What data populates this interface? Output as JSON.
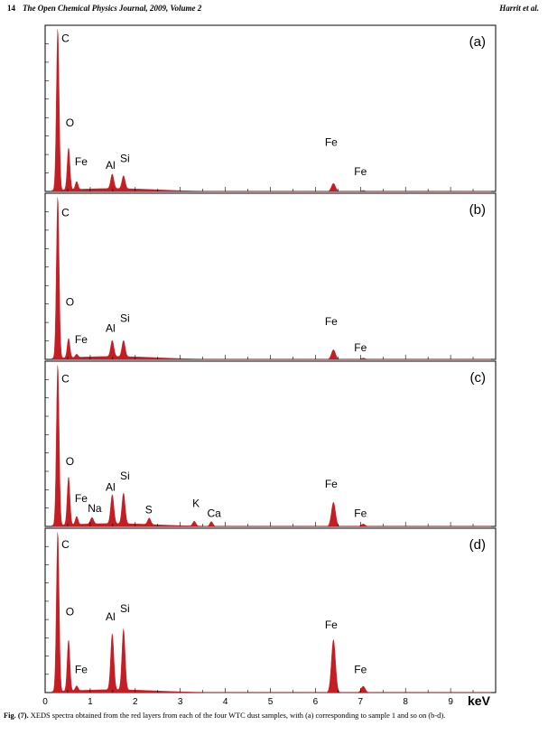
{
  "header": {
    "page_number": "14",
    "journal": "The Open Chemical Physics Journal, 2009, Volume 2",
    "authors": "Harrit et al."
  },
  "caption": {
    "label": "Fig. (7).",
    "text": "XEDS spectra obtained from the red layers from each of the four WTC dust samples, with (a) corresponding to sample 1 and so on (b-d)."
  },
  "colors": {
    "spectrum": "#c41e24",
    "axis": "#000000"
  },
  "chart_data": [
    {
      "type": "area",
      "panel_label": "(a)",
      "xlabel": "keV",
      "xlim": [
        0,
        10
      ],
      "ylim": [
        0,
        100
      ],
      "peaks": [
        {
          "element": "C",
          "x": 0.28,
          "y": 100
        },
        {
          "element": "O",
          "x": 0.52,
          "y": 26
        },
        {
          "element": "Fe",
          "x": 0.7,
          "y": 5
        },
        {
          "element": "Al",
          "x": 1.49,
          "y": 9
        },
        {
          "element": "Si",
          "x": 1.74,
          "y": 8
        },
        {
          "element": "Fe",
          "x": 6.4,
          "y": 5
        },
        {
          "element": "Fe",
          "x": 7.06,
          "y": 0.6
        }
      ],
      "labels": [
        {
          "text": "C",
          "x": 0.45,
          "y": 92
        },
        {
          "text": "O",
          "x": 0.55,
          "y": 40
        },
        {
          "text": "Fe",
          "x": 0.8,
          "y": 16
        },
        {
          "text": "Al",
          "x": 1.45,
          "y": 14
        },
        {
          "text": "Si",
          "x": 1.77,
          "y": 18
        },
        {
          "text": "Fe",
          "x": 6.35,
          "y": 28
        },
        {
          "text": "Fe",
          "x": 7.0,
          "y": 10
        }
      ]
    },
    {
      "type": "area",
      "panel_label": "(b)",
      "xlabel": "keV",
      "xlim": [
        0,
        10
      ],
      "ylim": [
        0,
        100
      ],
      "peaks": [
        {
          "element": "C",
          "x": 0.28,
          "y": 100
        },
        {
          "element": "O",
          "x": 0.52,
          "y": 12
        },
        {
          "element": "Fe",
          "x": 0.7,
          "y": 2
        },
        {
          "element": "Al",
          "x": 1.49,
          "y": 10
        },
        {
          "element": "Si",
          "x": 1.74,
          "y": 10
        },
        {
          "element": "Fe",
          "x": 6.4,
          "y": 6
        },
        {
          "element": "Fe",
          "x": 7.06,
          "y": 0.8
        }
      ],
      "labels": [
        {
          "text": "C",
          "x": 0.45,
          "y": 88
        },
        {
          "text": "O",
          "x": 0.55,
          "y": 33
        },
        {
          "text": "Fe",
          "x": 0.8,
          "y": 10
        },
        {
          "text": "Al",
          "x": 1.45,
          "y": 17
        },
        {
          "text": "Si",
          "x": 1.77,
          "y": 23
        },
        {
          "text": "Fe",
          "x": 6.35,
          "y": 21
        },
        {
          "text": "Fe",
          "x": 7.0,
          "y": 5
        }
      ]
    },
    {
      "type": "area",
      "panel_label": "(c)",
      "xlabel": "keV",
      "xlim": [
        0,
        10
      ],
      "ylim": [
        0,
        100
      ],
      "peaks": [
        {
          "element": "C",
          "x": 0.28,
          "y": 100
        },
        {
          "element": "O",
          "x": 0.52,
          "y": 30
        },
        {
          "element": "Fe",
          "x": 0.7,
          "y": 5
        },
        {
          "element": "Na",
          "x": 1.04,
          "y": 4
        },
        {
          "element": "Al",
          "x": 1.49,
          "y": 18
        },
        {
          "element": "Si",
          "x": 1.74,
          "y": 19
        },
        {
          "element": "S",
          "x": 2.31,
          "y": 4
        },
        {
          "element": "K",
          "x": 3.31,
          "y": 3
        },
        {
          "element": "Ca",
          "x": 3.69,
          "y": 3
        },
        {
          "element": "Fe",
          "x": 6.4,
          "y": 15
        },
        {
          "element": "Fe",
          "x": 7.06,
          "y": 1.5
        }
      ],
      "labels": [
        {
          "text": "C",
          "x": 0.45,
          "y": 89
        },
        {
          "text": "O",
          "x": 0.55,
          "y": 38
        },
        {
          "text": "Fe",
          "x": 0.8,
          "y": 15
        },
        {
          "text": "Na",
          "x": 1.1,
          "y": 9
        },
        {
          "text": "Al",
          "x": 1.45,
          "y": 22
        },
        {
          "text": "Si",
          "x": 1.77,
          "y": 29
        },
        {
          "text": "S",
          "x": 2.3,
          "y": 8
        },
        {
          "text": "K",
          "x": 3.35,
          "y": 12
        },
        {
          "text": "Ca",
          "x": 3.75,
          "y": 6
        },
        {
          "text": "Fe",
          "x": 6.35,
          "y": 24
        },
        {
          "text": "Fe",
          "x": 7.0,
          "y": 6
        }
      ]
    },
    {
      "type": "area",
      "panel_label": "(d)",
      "xlabel": "keV",
      "xlim": [
        0,
        10
      ],
      "ylim": [
        0,
        100
      ],
      "peaks": [
        {
          "element": "C",
          "x": 0.28,
          "y": 100
        },
        {
          "element": "O",
          "x": 0.52,
          "y": 32
        },
        {
          "element": "Fe",
          "x": 0.7,
          "y": 3
        },
        {
          "element": "Al",
          "x": 1.49,
          "y": 35
        },
        {
          "element": "Si",
          "x": 1.74,
          "y": 38
        },
        {
          "element": "Fe",
          "x": 6.4,
          "y": 33
        },
        {
          "element": "Fe",
          "x": 7.06,
          "y": 4
        }
      ],
      "labels": [
        {
          "text": "C",
          "x": 0.45,
          "y": 90
        },
        {
          "text": "O",
          "x": 0.55,
          "y": 48
        },
        {
          "text": "Fe",
          "x": 0.8,
          "y": 12
        },
        {
          "text": "Al",
          "x": 1.45,
          "y": 45
        },
        {
          "text": "Si",
          "x": 1.77,
          "y": 50
        },
        {
          "text": "Fe",
          "x": 6.35,
          "y": 40
        },
        {
          "text": "Fe",
          "x": 7.0,
          "y": 12
        }
      ]
    }
  ],
  "x_ticks": [
    0,
    1,
    2,
    3,
    4,
    5,
    6,
    7,
    8,
    9
  ]
}
